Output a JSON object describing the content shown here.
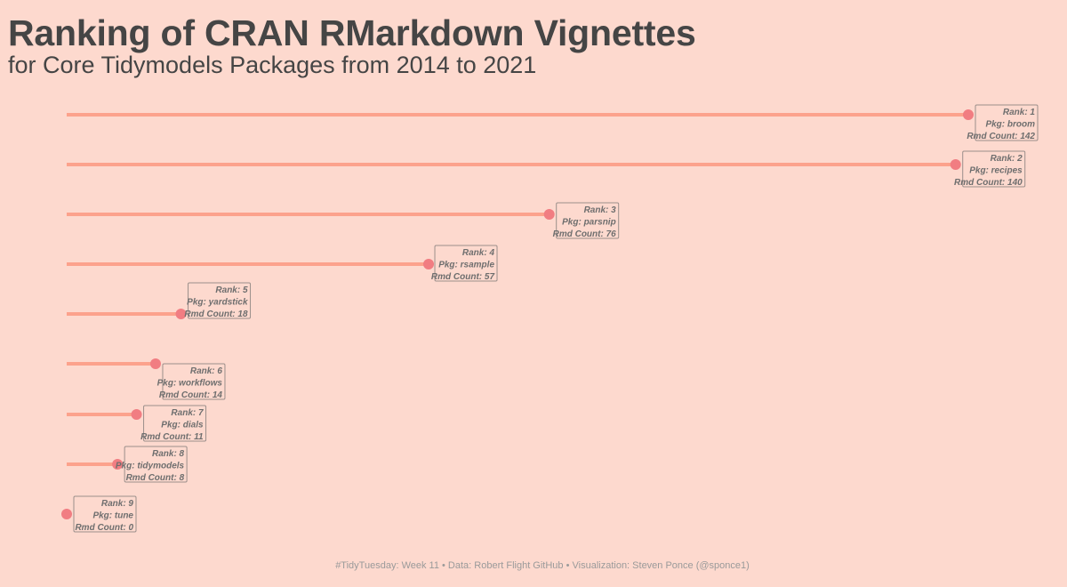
{
  "header": {
    "title": "Ranking of CRAN RMarkdown Vignettes",
    "subtitle": "for Core Tidymodels Packages from 2014 to 2021"
  },
  "caption": "#TidyTuesday: Week 11 • Data: Robert Flight GitHub • Visualization: Steven Ponce (@sponce1)",
  "colors": {
    "background": "#fdd9ce",
    "segment": "#fca28c",
    "point": "#f17d82",
    "label_border": "#9b8f8b",
    "label_text": "#6e6e6e"
  },
  "chart_data": {
    "type": "lollipop",
    "x_range": [
      0,
      142
    ],
    "grid": false,
    "legend": "none",
    "label_prefixes": {
      "rank": "Rank: ",
      "pkg": "Pkg: ",
      "count": "Rmd Count: "
    },
    "items": [
      {
        "rank": 1,
        "pkg": "broom",
        "count": 142
      },
      {
        "rank": 2,
        "pkg": "recipes",
        "count": 140
      },
      {
        "rank": 3,
        "pkg": "parsnip",
        "count": 76
      },
      {
        "rank": 4,
        "pkg": "rsample",
        "count": 57
      },
      {
        "rank": 5,
        "pkg": "yardstick",
        "count": 18
      },
      {
        "rank": 6,
        "pkg": "workflows",
        "count": 14
      },
      {
        "rank": 7,
        "pkg": "dials",
        "count": 11
      },
      {
        "rank": 8,
        "pkg": "tidymodels",
        "count": 8
      },
      {
        "rank": 9,
        "pkg": "tune",
        "count": 0
      }
    ]
  }
}
